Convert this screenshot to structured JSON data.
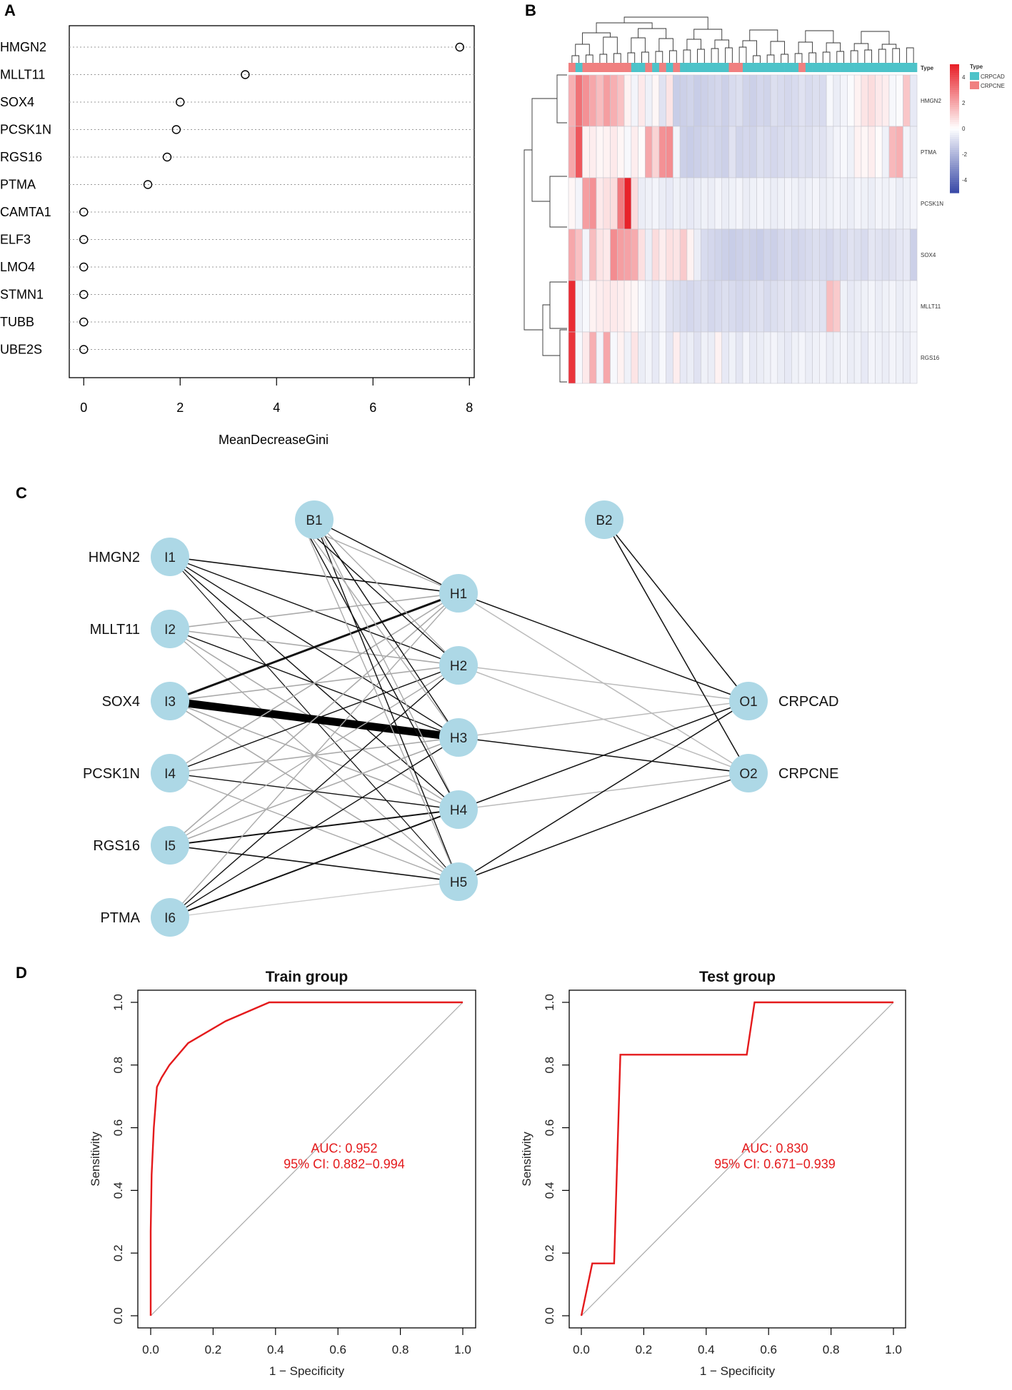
{
  "panels": {
    "A": "A",
    "B": "B",
    "C": "C",
    "D": "D"
  },
  "chart_data": [
    {
      "type": "scatter",
      "panel": "A",
      "xlabel": "MeanDecreaseGini",
      "xticks": [
        0,
        2,
        4,
        6,
        8
      ],
      "xlim": [
        -0.3,
        8.1
      ],
      "genes": [
        "HMGN2",
        "MLLT11",
        "SOX4",
        "PCSK1N",
        "RGS16",
        "PTMA",
        "CAMTA1",
        "ELF3",
        "LMO4",
        "STMN1",
        "TUBB",
        "UBE2S"
      ],
      "values": [
        7.8,
        3.35,
        2.0,
        1.92,
        1.73,
        1.33,
        0,
        0,
        0,
        0,
        0,
        0
      ]
    },
    {
      "type": "heatmap",
      "panel": "B",
      "rows": [
        "HMGN2",
        "PTMA",
        "PCSK1N",
        "SOX4",
        "MLLT11",
        "RGS16"
      ],
      "annotation_label": "Type",
      "legend_title": "Type",
      "legend_groups": [
        "CRPCAD",
        "CRPCNE"
      ],
      "group_colors": {
        "CRPCAD": "#4dc3c9",
        "CRPCNE": "#f08080"
      },
      "color_scale": {
        "low": "#3b4ba8",
        "mid": "#ffffff",
        "high": "#e8222a"
      },
      "scale_ticks": [
        4,
        2,
        0,
        -2,
        -4
      ],
      "column_groups": [
        "CRPCNE",
        "CRPCAD",
        "CRPCNE",
        "CRPCNE",
        "CRPCNE",
        "CRPCNE",
        "CRPCNE",
        "CRPCNE",
        "CRPCNE",
        "CRPCAD",
        "CRPCAD",
        "CRPCNE",
        "CRPCAD",
        "CRPCNE",
        "CRPCAD",
        "CRPCNE",
        "CRPCAD",
        "CRPCAD",
        "CRPCAD",
        "CRPCAD",
        "CRPCAD",
        "CRPCAD",
        "CRPCAD",
        "CRPCNE",
        "CRPCNE",
        "CRPCAD",
        "CRPCAD",
        "CRPCAD",
        "CRPCAD",
        "CRPCAD",
        "CRPCAD",
        "CRPCAD",
        "CRPCAD",
        "CRPCNE",
        "CRPCAD",
        "CRPCAD",
        "CRPCAD",
        "CRPCAD",
        "CRPCAD",
        "CRPCAD",
        "CRPCAD",
        "CRPCAD",
        "CRPCAD",
        "CRPCAD",
        "CRPCAD",
        "CRPCAD",
        "CRPCAD",
        "CRPCAD",
        "CRPCAD",
        "CRPCAD"
      ],
      "matrix": [
        [
          1.8,
          3.2,
          2.5,
          2.0,
          1.5,
          2.2,
          1.8,
          1.4,
          0.3,
          -0.3,
          0.5,
          -0.4,
          0.2,
          -0.8,
          0.6,
          -1.4,
          -1.3,
          -1.2,
          -1.4,
          -1.3,
          -1.2,
          -1.1,
          -1.3,
          -1.0,
          -0.9,
          -1.2,
          -1.3,
          -1.1,
          -1.2,
          -0.9,
          -1.0,
          -1.1,
          -1.0,
          -0.8,
          -1.0,
          -0.9,
          -1.0,
          -0.2,
          -0.5,
          -0.3,
          -0.1,
          0.3,
          0.6,
          0.8,
          0.5,
          0.4,
          -0.2,
          -0.1,
          1.3,
          -0.6
        ],
        [
          2.0,
          3.8,
          0.3,
          0.4,
          0.2,
          0.3,
          0.5,
          0.2,
          -0.2,
          0.4,
          0.1,
          2.0,
          1.0,
          2.5,
          2.6,
          -0.3,
          -1.3,
          -1.4,
          -1.3,
          -1.2,
          -1.1,
          -1.2,
          -1.3,
          -0.8,
          -1.2,
          -1.1,
          -1.2,
          -0.9,
          -1.0,
          -1.1,
          -1.0,
          -0.9,
          -1.0,
          -0.8,
          -0.9,
          -0.7,
          -0.8,
          -0.5,
          -0.3,
          -0.2,
          -0.4,
          0.3,
          0.2,
          0.4,
          0.1,
          -0.4,
          1.6,
          1.8,
          -0.3,
          -0.5
        ],
        [
          0.2,
          -0.3,
          2.2,
          2.5,
          0.5,
          0.7,
          0.8,
          3.0,
          5.0,
          0.8,
          -0.5,
          -0.4,
          -0.3,
          -0.5,
          -0.6,
          -0.4,
          -0.5,
          -0.6,
          -0.5,
          -0.4,
          -0.5,
          -0.3,
          -0.5,
          -0.4,
          -0.3,
          -0.5,
          -0.4,
          -0.3,
          -0.4,
          -0.5,
          -0.4,
          -0.3,
          -0.4,
          -0.5,
          -0.4,
          -0.3,
          -0.5,
          -0.4,
          -0.3,
          -0.4,
          -0.5,
          -0.3,
          -0.4,
          -0.5,
          -0.3,
          -0.4,
          -0.3,
          -0.5,
          -0.4,
          -0.3
        ],
        [
          2.0,
          1.4,
          -0.3,
          1.5,
          0.6,
          0.5,
          2.6,
          2.2,
          2.1,
          1.9,
          0.7,
          -0.5,
          0.8,
          0.4,
          0.7,
          0.6,
          1.2,
          0.3,
          -0.5,
          -1.0,
          -1.1,
          -1.2,
          -1.3,
          -1.4,
          -1.3,
          -1.2,
          -1.3,
          -1.4,
          -1.2,
          -1.3,
          -1.1,
          -1.0,
          -1.2,
          -1.1,
          -1.0,
          -0.9,
          -1.0,
          -1.1,
          -0.9,
          -1.0,
          -0.8,
          -0.9,
          -1.0,
          -0.7,
          -0.8,
          -0.9,
          -0.8,
          -0.7,
          -0.6,
          -1.3
        ],
        [
          4.8,
          -0.4,
          -0.2,
          0.3,
          0.4,
          0.5,
          0.5,
          0.4,
          0.3,
          0.2,
          -0.2,
          -0.4,
          -0.6,
          -0.3,
          -0.8,
          -0.9,
          -1.0,
          -1.1,
          -1.0,
          -0.9,
          -1.1,
          -1.0,
          -0.9,
          -1.0,
          -1.1,
          -1.0,
          -0.9,
          -0.8,
          -1.0,
          -0.9,
          -0.8,
          -0.7,
          -0.9,
          -0.8,
          -0.7,
          -0.6,
          -0.8,
          1.5,
          1.2,
          -0.4,
          -0.6,
          -0.5,
          -0.4,
          -0.3,
          -0.5,
          -0.4,
          -0.3,
          -0.5,
          -0.4,
          -0.3
        ],
        [
          4.6,
          -0.2,
          0.5,
          1.8,
          -0.3,
          2.0,
          -0.2,
          0.3,
          -0.4,
          0.6,
          -0.5,
          -0.3,
          -0.6,
          -0.2,
          -0.7,
          0.4,
          -0.6,
          -0.5,
          -0.8,
          -0.4,
          -0.5,
          0.3,
          -0.6,
          -0.4,
          -0.7,
          -0.3,
          -0.6,
          -0.5,
          -0.4,
          -0.3,
          -0.5,
          -0.6,
          -0.4,
          -0.3,
          -0.5,
          -0.4,
          -0.3,
          -0.5,
          -0.4,
          -0.3,
          -0.5,
          -0.4,
          -0.6,
          -0.3,
          -0.4,
          -0.5,
          -0.3,
          -0.4,
          -0.5,
          -0.3
        ]
      ]
    },
    {
      "type": "network",
      "panel": "C",
      "inputs": [
        {
          "id": "I1",
          "gene": "HMGN2"
        },
        {
          "id": "I2",
          "gene": "MLLT11"
        },
        {
          "id": "I3",
          "gene": "SOX4"
        },
        {
          "id": "I4",
          "gene": "PCSK1N"
        },
        {
          "id": "I5",
          "gene": "RGS16"
        },
        {
          "id": "I6",
          "gene": "PTMA"
        }
      ],
      "hidden": [
        "H1",
        "H2",
        "H3",
        "H4",
        "H5"
      ],
      "bias": [
        "B1",
        "B2"
      ],
      "outputs": [
        {
          "id": "O1",
          "label": "CRPCAD"
        },
        {
          "id": "O2",
          "label": "CRPCNE"
        }
      ]
    },
    {
      "type": "line",
      "panel": "D",
      "title": "Train group",
      "xlabel": "1 − Specificity",
      "ylabel": "Sensitivity",
      "xlim": [
        0,
        1
      ],
      "ylim": [
        0,
        1
      ],
      "ticks": [
        "0.0",
        "0.2",
        "0.4",
        "0.6",
        "0.8",
        "1.0"
      ],
      "auc_label": "AUC: 0.952",
      "ci_label": "95% CI: 0.882−0.994",
      "color": "#e41a1c",
      "x": [
        0,
        0,
        0.003,
        0.01,
        0.02,
        0.035,
        0.06,
        0.12,
        0.24,
        0.38,
        0.6,
        1.0
      ],
      "y": [
        0,
        0.27,
        0.45,
        0.6,
        0.73,
        0.76,
        0.8,
        0.87,
        0.94,
        1.0,
        1.0,
        1.0
      ]
    },
    {
      "type": "line",
      "panel": "D",
      "title": "Test group",
      "xlabel": "1 − Specificity",
      "ylabel": "Sensitivity",
      "xlim": [
        0,
        1
      ],
      "ylim": [
        0,
        1
      ],
      "ticks": [
        "0.0",
        "0.2",
        "0.4",
        "0.6",
        "0.8",
        "1.0"
      ],
      "auc_label": "AUC: 0.830",
      "ci_label": "95% CI: 0.671−0.939",
      "color": "#e41a1c",
      "x": [
        0,
        0.035,
        0.105,
        0.125,
        0.53,
        0.555,
        1.0
      ],
      "y": [
        0,
        0.167,
        0.167,
        0.833,
        0.833,
        1.0,
        1.0
      ]
    }
  ]
}
